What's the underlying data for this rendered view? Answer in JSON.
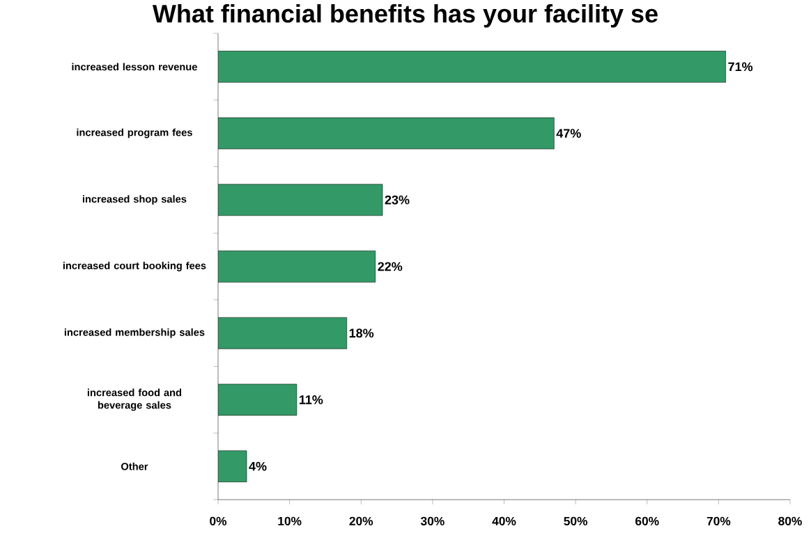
{
  "chart_data": {
    "type": "bar",
    "orientation": "horizontal",
    "title": "What financial benefits has your facility se",
    "categories": [
      "increased lesson revenue",
      "increased program fees",
      "increased shop sales",
      "increased court booking fees",
      "increased membership sales",
      "increased food and beverage sales",
      "Other"
    ],
    "values": [
      71,
      47,
      23,
      22,
      18,
      11,
      4
    ],
    "value_labels": [
      "71%",
      "47%",
      "23%",
      "22%",
      "18%",
      "11%",
      "4%"
    ],
    "color": "#339966",
    "xlim": [
      0,
      80
    ],
    "xticks": [
      {
        "value": 0,
        "label": "0%"
      },
      {
        "value": 10,
        "label": "10%"
      },
      {
        "value": 20,
        "label": "20%"
      },
      {
        "value": 30,
        "label": "30%"
      },
      {
        "value": 40,
        "label": "40%"
      },
      {
        "value": 50,
        "label": "50%"
      },
      {
        "value": 60,
        "label": "60%"
      },
      {
        "value": 70,
        "label": "70%"
      },
      {
        "value": 80,
        "label": "80%"
      }
    ],
    "grid": false
  }
}
